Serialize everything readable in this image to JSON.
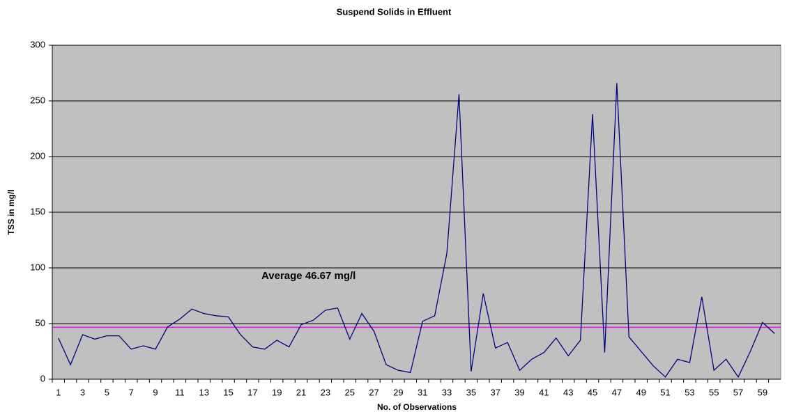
{
  "chart_data": {
    "type": "line",
    "title": "Suspend Solids in Effluent",
    "x_label": "No. of Observations",
    "y_label": "TSS in mg/l",
    "categories": [
      1,
      null,
      3,
      null,
      5,
      null,
      7,
      null,
      9,
      null,
      11,
      null,
      13,
      null,
      15,
      null,
      17,
      null,
      19,
      null,
      21,
      null,
      23,
      null,
      25,
      null,
      27,
      null,
      29,
      null,
      31,
      null,
      33,
      null,
      35,
      null,
      37,
      null,
      39,
      null,
      41,
      null,
      43,
      null,
      45,
      null,
      47,
      null,
      49,
      null,
      51,
      null,
      53,
      null,
      55,
      null,
      57,
      null,
      59,
      null
    ],
    "series": [
      {
        "name": "TSS",
        "color": "#000080",
        "values": [
          37,
          13,
          40,
          36,
          39,
          39,
          27,
          30,
          27,
          47,
          54,
          63,
          59,
          57,
          56,
          40,
          29,
          27,
          35,
          29,
          49,
          53,
          62,
          64,
          36,
          59,
          43,
          13,
          8,
          6,
          52,
          57,
          113,
          256,
          7,
          77,
          28,
          33,
          8,
          18,
          24,
          37,
          21,
          35,
          238,
          24,
          266,
          38,
          25,
          12,
          2,
          18,
          15,
          74,
          8,
          18,
          2,
          25,
          51,
          41
        ]
      }
    ],
    "average": 46.67,
    "average_color": "#ff00ff",
    "annotation": "Average 46.67 mg/l",
    "ylim": [
      0,
      300
    ],
    "yticks": [
      0,
      50,
      100,
      150,
      200,
      250,
      300
    ],
    "grid": true,
    "plot_background": "#c0c0c0"
  }
}
